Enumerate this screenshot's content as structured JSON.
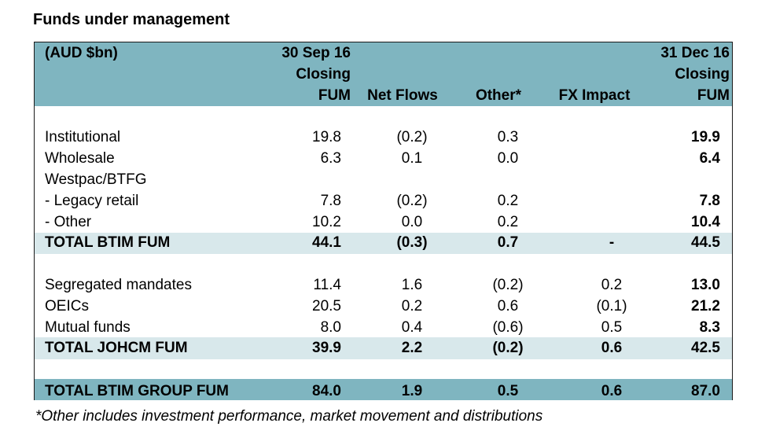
{
  "title": "Funds under management",
  "header": {
    "unit": "(AUD $bn)",
    "col1": [
      "30 Sep 16",
      "Closing",
      "FUM"
    ],
    "col2": "Net Flows",
    "col3": "Other*",
    "col4": "FX Impact",
    "col5": [
      "31 Dec 16",
      "Closing",
      "FUM"
    ]
  },
  "rows": [
    {
      "label": "Institutional",
      "v1": "19.8",
      "v2": "(0.2)",
      "v3": "0.3",
      "v4": "",
      "v5": "19.9"
    },
    {
      "label": "Wholesale",
      "v1": "6.3",
      "v2": "0.1",
      "v3": "0.0",
      "v4": "",
      "v5": "6.4"
    },
    {
      "label": "Westpac/BTFG",
      "v1": "",
      "v2": "",
      "v3": "",
      "v4": "",
      "v5": ""
    },
    {
      "label": " - Legacy retail",
      "v1": "7.8",
      "v2": "(0.2)",
      "v3": "0.2",
      "v4": "",
      "v5": "7.8"
    },
    {
      "label": " - Other",
      "v1": "10.2",
      "v2": "0.0",
      "v3": "0.2",
      "v4": "",
      "v5": "10.4"
    },
    {
      "label": "TOTAL BTIM FUM",
      "v1": "44.1",
      "v2": "(0.3)",
      "v3": "0.7",
      "v4": "-",
      "v5": "44.5"
    },
    {
      "label": "Segregated mandates",
      "v1": "11.4",
      "v2": "1.6",
      "v3": "(0.2)",
      "v4": "0.2",
      "v5": "13.0"
    },
    {
      "label": "OEICs",
      "v1": "20.5",
      "v2": "0.2",
      "v3": "0.6",
      "v4": "(0.1)",
      "v5": "21.2"
    },
    {
      "label": "Mutual funds",
      "v1": "8.0",
      "v2": "0.4",
      "v3": "(0.6)",
      "v4": "0.5",
      "v5": "8.3"
    },
    {
      "label": "TOTAL JOHCM FUM",
      "v1": "39.9",
      "v2": "2.2",
      "v3": "(0.2)",
      "v4": "0.6",
      "v5": "42.5"
    },
    {
      "label": "TOTAL BTIM GROUP FUM",
      "v1": "84.0",
      "v2": "1.9",
      "v3": "0.5",
      "v4": "0.6",
      "v5": "87.0"
    }
  ],
  "footnote": "*Other includes investment performance, market movement and distributions"
}
